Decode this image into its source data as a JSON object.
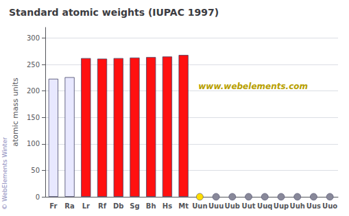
{
  "chart_data": {
    "type": "bar",
    "title": "Standard atomic weights (IUPAC 1997)",
    "ylabel": "atomic mass units",
    "annotations": [
      "www.webelements.com",
      "© WebElements Winter"
    ],
    "categories": [
      "Fr",
      "Ra",
      "Lr",
      "Rf",
      "Db",
      "Sg",
      "Bh",
      "Hs",
      "Mt",
      "Uun",
      "Uuu",
      "Uub",
      "Uut",
      "Uuq",
      "Uup",
      "Uuh",
      "Uus",
      "Uuo"
    ],
    "series": [
      {
        "type": "bar",
        "values": [
          223,
          226,
          262,
          261,
          262,
          263,
          264,
          265,
          268,
          null,
          null,
          null,
          null,
          null,
          null,
          null,
          null,
          null
        ],
        "colors": [
          "#e8e8ff",
          "#e8e8ff",
          "#ff1010",
          "#ff1010",
          "#ff1010",
          "#ff1010",
          "#ff1010",
          "#ff1010",
          "#ff1010",
          null,
          null,
          null,
          null,
          null,
          null,
          null,
          null,
          null
        ]
      },
      {
        "type": "scatter",
        "values": [
          null,
          null,
          null,
          null,
          null,
          null,
          null,
          null,
          null,
          0,
          0,
          0,
          0,
          0,
          0,
          0,
          0,
          0
        ],
        "colors": [
          null,
          null,
          null,
          null,
          null,
          null,
          null,
          null,
          null,
          "#ffdd00",
          "#888899",
          "#888899",
          "#888899",
          "#888899",
          "#888899",
          "#888899",
          "#888899",
          "#888899"
        ]
      }
    ],
    "ylim": [
      0,
      320
    ],
    "yticks": [
      0,
      50,
      100,
      150,
      200,
      250,
      300
    ],
    "grid": true
  }
}
